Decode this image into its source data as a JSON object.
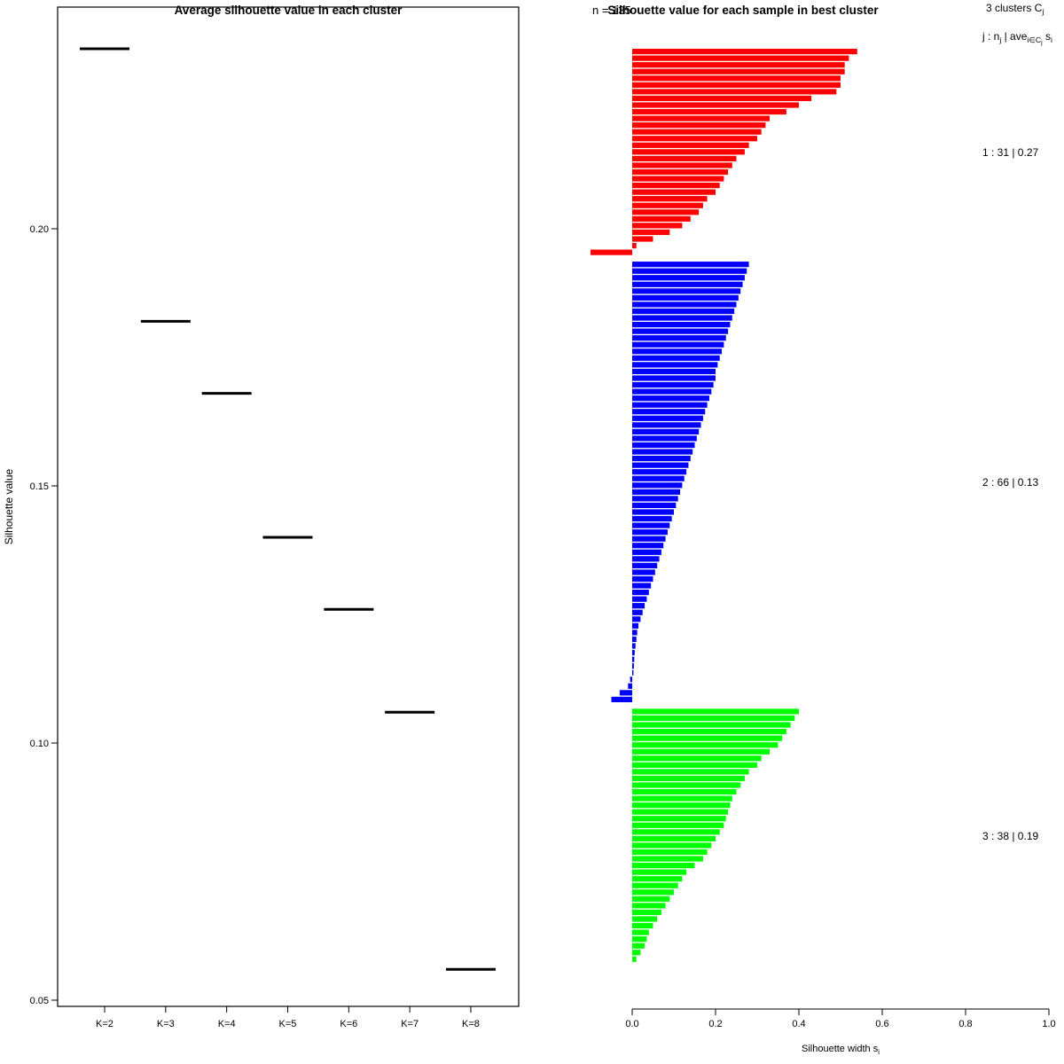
{
  "figure": {
    "background": "#ffffff",
    "foreground": "#000000"
  },
  "chart_data": [
    {
      "id": "avg-silhouette-per-k",
      "type": "scatter",
      "marker": "horizontal-dash",
      "marker_color": "#000000",
      "title": "Average silhouette value in each cluster",
      "xlabel": "",
      "ylabel": "Silhouette value",
      "categories": [
        "K=2",
        "K=3",
        "K=4",
        "K=5",
        "K=6",
        "K=7",
        "K=8"
      ],
      "values": [
        0.235,
        0.182,
        0.168,
        0.14,
        0.126,
        0.106,
        0.056
      ],
      "yticks": [
        0.05,
        0.1,
        0.15,
        0.2
      ],
      "ytick_labels": [
        "0.05",
        "0.10",
        "0.15",
        "0.20"
      ],
      "ylim": [
        0.044,
        0.246
      ],
      "grid": false,
      "frame": true
    },
    {
      "id": "silhouette-per-sample",
      "type": "bar",
      "orientation": "horizontal",
      "title": "Silhouette value for each sample in best cluster",
      "n_label": "n = 135",
      "xlabel_parts": [
        [
          "Silhouette width s",
          0
        ],
        [
          "i",
          1
        ]
      ],
      "xticks": [
        0.0,
        0.2,
        0.4,
        0.6,
        0.8,
        1.0
      ],
      "xtick_labels": [
        "0.0",
        "0.2",
        "0.4",
        "0.6",
        "0.8",
        "1.0"
      ],
      "xlim": [
        0,
        1
      ],
      "legend_title_parts": [
        [
          "3  clusters  C",
          0
        ],
        [
          "j",
          1
        ]
      ],
      "legend_formula_parts": [
        [
          "j :  n",
          0
        ],
        [
          "j",
          1
        ],
        [
          " | ave",
          0
        ],
        [
          "i∈C",
          1
        ],
        [
          "j",
          2
        ],
        [
          " s",
          0
        ],
        [
          "i",
          1
        ]
      ],
      "grid": false,
      "clusters": [
        {
          "index": 1,
          "n": 31,
          "avg_silhouette": 0.27,
          "label": "1 :   31  |  0.27",
          "color": "#ff0000",
          "values": [
            0.54,
            0.52,
            0.51,
            0.51,
            0.5,
            0.5,
            0.49,
            0.43,
            0.4,
            0.37,
            0.33,
            0.32,
            0.31,
            0.3,
            0.28,
            0.27,
            0.25,
            0.24,
            0.23,
            0.22,
            0.21,
            0.2,
            0.18,
            0.17,
            0.16,
            0.14,
            0.12,
            0.09,
            0.05,
            0.01,
            -0.1
          ]
        },
        {
          "index": 2,
          "n": 66,
          "avg_silhouette": 0.13,
          "label": "2 :   66  |  0.13",
          "color": "#0000ff",
          "values": [
            0.28,
            0.275,
            0.27,
            0.265,
            0.26,
            0.255,
            0.25,
            0.245,
            0.24,
            0.235,
            0.23,
            0.225,
            0.22,
            0.215,
            0.21,
            0.205,
            0.2,
            0.2,
            0.195,
            0.19,
            0.185,
            0.18,
            0.175,
            0.17,
            0.165,
            0.16,
            0.155,
            0.15,
            0.145,
            0.14,
            0.135,
            0.13,
            0.125,
            0.12,
            0.115,
            0.11,
            0.105,
            0.1,
            0.095,
            0.09,
            0.085,
            0.08,
            0.075,
            0.07,
            0.065,
            0.06,
            0.055,
            0.05,
            0.045,
            0.04,
            0.035,
            0.03,
            0.025,
            0.02,
            0.015,
            0.012,
            0.01,
            0.008,
            0.006,
            0.005,
            0.004,
            0.003,
            -0.005,
            -0.01,
            -0.03,
            -0.05
          ]
        },
        {
          "index": 3,
          "n": 38,
          "avg_silhouette": 0.19,
          "label": "3 :   38  |  0.19",
          "color": "#00ff00",
          "values": [
            0.4,
            0.39,
            0.38,
            0.37,
            0.36,
            0.35,
            0.33,
            0.31,
            0.3,
            0.28,
            0.27,
            0.26,
            0.25,
            0.24,
            0.235,
            0.23,
            0.225,
            0.22,
            0.21,
            0.2,
            0.19,
            0.18,
            0.17,
            0.15,
            0.13,
            0.12,
            0.11,
            0.1,
            0.09,
            0.08,
            0.07,
            0.06,
            0.05,
            0.04,
            0.035,
            0.03,
            0.02,
            0.01
          ]
        }
      ]
    }
  ]
}
